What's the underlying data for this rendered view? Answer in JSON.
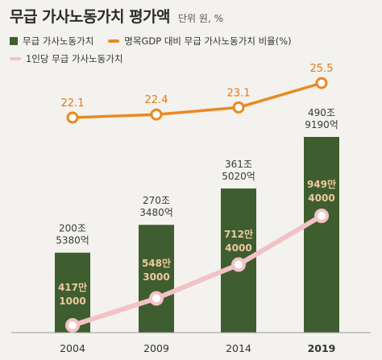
{
  "title": "무급 가사노동가치 평가액",
  "subtitle": "단위 원, %",
  "colors": {
    "bar": "#3f5e2f",
    "ratio_line": "#e98a22",
    "per_capita_line": "#f3c2c6",
    "ratio_label": "#e07a1c",
    "bar_label": "#3a3a3a",
    "per_capita_label": "#efc9a0"
  },
  "chart_data": {
    "type": "bar",
    "categories": [
      "2004",
      "2009",
      "2014",
      "2019"
    ],
    "series": [
      {
        "name": "무급 가사노동가치",
        "type": "bar",
        "values": [
          200.538,
          270.348,
          361.502,
          490.919
        ],
        "labels": [
          [
            "200조",
            "5380억"
          ],
          [
            "270조",
            "3480억"
          ],
          [
            "361조",
            "5020억"
          ],
          [
            "490조",
            "9190억"
          ]
        ]
      },
      {
        "name": "명목GDP 대비 무급 가사노동가치 비율(%)",
        "type": "line",
        "values": [
          22.1,
          22.4,
          23.1,
          25.5
        ],
        "labels": [
          "22.1",
          "22.4",
          "23.1",
          "25.5"
        ]
      },
      {
        "name": "1인당 무급 가사노동가치",
        "type": "line",
        "values": [
          4171000,
          5483000,
          7124000,
          9494000
        ],
        "labels": [
          [
            "417만",
            "1000"
          ],
          [
            "548만",
            "3000"
          ],
          [
            "712만",
            "4000"
          ],
          [
            "949만",
            "4000"
          ]
        ]
      }
    ],
    "grid": false,
    "legend_placement": "top-left"
  }
}
